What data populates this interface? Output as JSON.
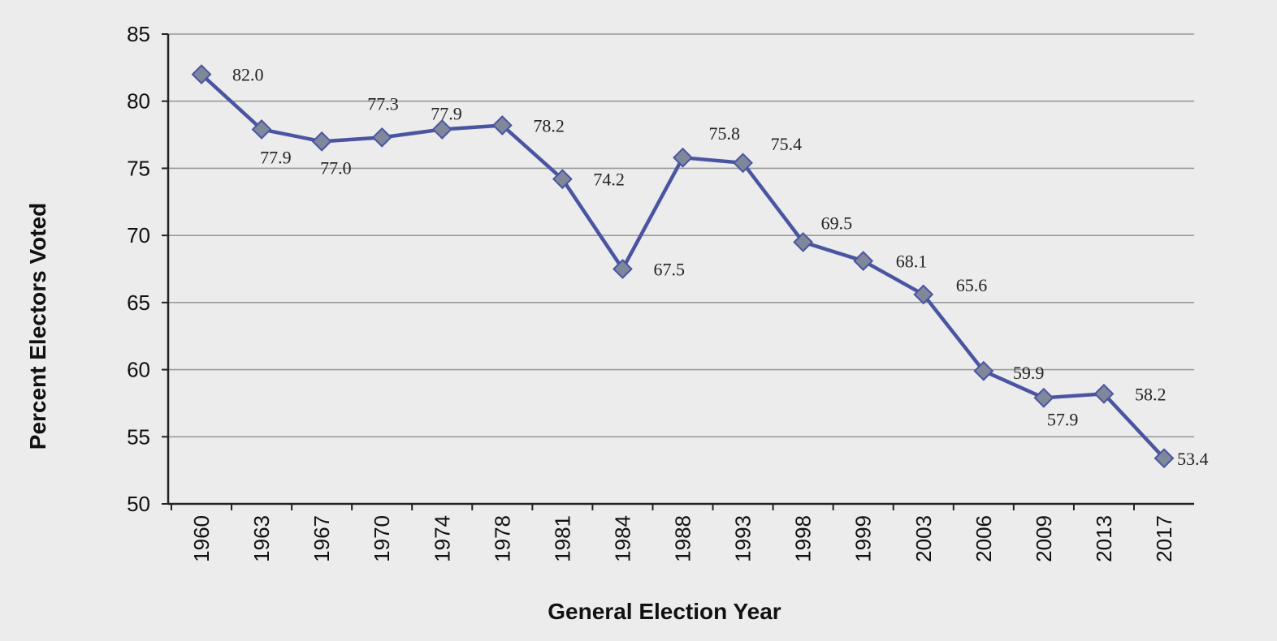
{
  "chart_data": {
    "type": "line",
    "title": "",
    "xlabel": "General Election Year",
    "ylabel": "Percent Electors Voted",
    "categories": [
      "1960",
      "1963",
      "1967",
      "1970",
      "1974",
      "1978",
      "1981",
      "1984",
      "1988",
      "1993",
      "1998",
      "1999",
      "2003",
      "2006",
      "2009",
      "2013",
      "2017"
    ],
    "series": [
      {
        "values": [
          82.0,
          77.9,
          77.0,
          77.3,
          77.9,
          78.2,
          74.2,
          67.5,
          75.8,
          75.4,
          69.5,
          68.1,
          65.6,
          59.9,
          57.9,
          58.2,
          53.4
        ],
        "data_labels": [
          "82.0",
          "77.9",
          "77.0",
          "77.3",
          "77.9",
          "78.2",
          "74.2",
          "67.5",
          "75.8",
          "75.4",
          "69.5",
          "68.1",
          "65.6",
          "59.9",
          "57.9",
          "58.2",
          "53.4"
        ],
        "line_color": "#4a55a2",
        "marker_color": "#7f879b",
        "marker": "diamond"
      }
    ],
    "ylim": [
      50,
      85
    ],
    "yticks": [
      "50",
      "55",
      "60",
      "65",
      "70",
      "75",
      "80",
      "85"
    ],
    "grid": true,
    "legend": "none"
  }
}
